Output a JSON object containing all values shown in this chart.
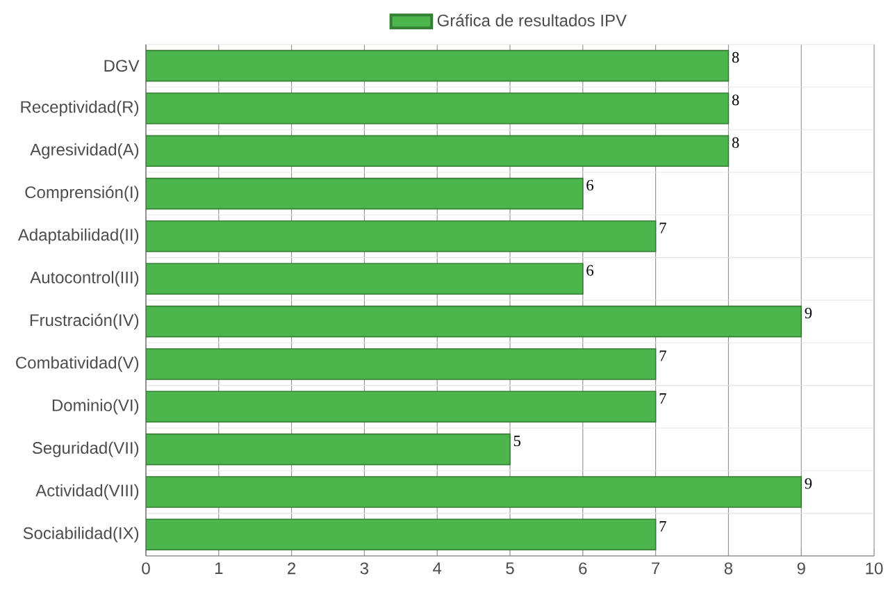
{
  "chart_data": {
    "type": "bar",
    "orientation": "horizontal",
    "categories": [
      "DGV",
      "Receptividad(R)",
      "Agresividad(A)",
      "Comprensión(I)",
      "Adaptabilidad(II)",
      "Autocontrol(III)",
      "Frustración(IV)",
      "Combatividad(V)",
      "Dominio(VI)",
      "Seguridad(VII)",
      "Actividad(VIII)",
      "Sociabilidad(IX)"
    ],
    "series": [
      {
        "name": "Gráfica de resultados IPV",
        "color": "#4cb54c",
        "values": [
          8,
          8,
          8,
          6,
          7,
          6,
          9,
          7,
          7,
          5,
          9,
          7
        ]
      }
    ],
    "xlim": [
      0,
      10
    ],
    "xticks": [
      0,
      1,
      2,
      3,
      4,
      5,
      6,
      7,
      8,
      9,
      10
    ],
    "grid": true,
    "legend": "top",
    "data_labels": true
  }
}
